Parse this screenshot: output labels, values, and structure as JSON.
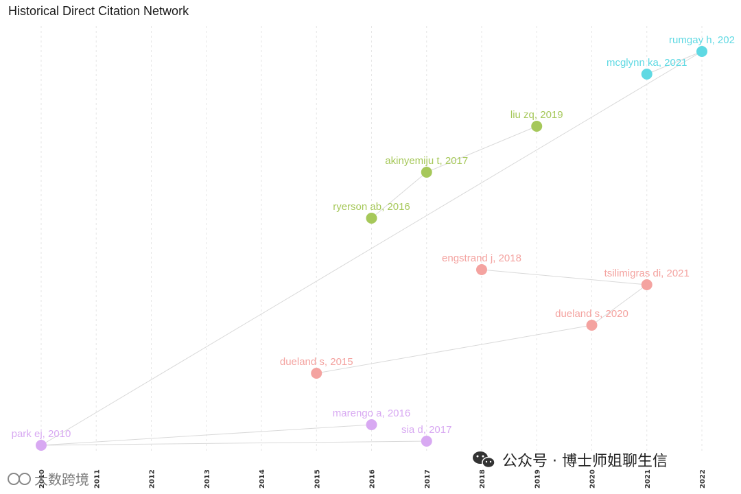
{
  "chart_data": {
    "type": "scatter",
    "title": "Historical Direct Citation Network",
    "x_ticks": [
      2010,
      2011,
      2012,
      2013,
      2014,
      2015,
      2016,
      2017,
      2018,
      2019,
      2020,
      2021,
      2022
    ],
    "grid": "vertical dashed",
    "clusters": [
      {
        "color": "#5fd9e3"
      },
      {
        "color": "#a6c85a"
      },
      {
        "color": "#f4a3a0"
      },
      {
        "color": "#d8a9f2"
      }
    ],
    "nodes": [
      {
        "id": "rumgay",
        "label": "rumgay h, 202",
        "year": 2022,
        "cluster": 0
      },
      {
        "id": "mcglynn",
        "label": "mcglynn ka, 2021",
        "year": 2021,
        "cluster": 0
      },
      {
        "id": "liu",
        "label": "liu zq, 2019",
        "year": 2019,
        "cluster": 1
      },
      {
        "id": "akinyemiju",
        "label": "akinyemiju t, 2017",
        "year": 2017,
        "cluster": 1
      },
      {
        "id": "ryerson",
        "label": "ryerson ab, 2016",
        "year": 2016,
        "cluster": 1
      },
      {
        "id": "engstrand",
        "label": "engstrand j, 2018",
        "year": 2018,
        "cluster": 2
      },
      {
        "id": "tsilimigras",
        "label": "tsilimigras di, 2021",
        "year": 2021,
        "cluster": 2
      },
      {
        "id": "dueland2020",
        "label": "dueland s, 2020",
        "year": 2020,
        "cluster": 2
      },
      {
        "id": "dueland2015",
        "label": "dueland s, 2015",
        "year": 2015,
        "cluster": 2
      },
      {
        "id": "marengo",
        "label": "marengo a, 2016",
        "year": 2016,
        "cluster": 3
      },
      {
        "id": "sia",
        "label": "sia d, 2017",
        "year": 2017,
        "cluster": 3
      },
      {
        "id": "park",
        "label": "park ej, 2010",
        "year": 2010,
        "cluster": 3
      }
    ],
    "edges": [
      [
        "mcglynn",
        "rumgay"
      ],
      [
        "ryerson",
        "akinyemiju"
      ],
      [
        "akinyemiju",
        "liu"
      ],
      [
        "engstrand",
        "tsilimigras"
      ],
      [
        "tsilimigras",
        "dueland2020"
      ],
      [
        "dueland2020",
        "dueland2015"
      ],
      [
        "park",
        "marengo"
      ],
      [
        "park",
        "sia"
      ],
      [
        "park",
        "rumgay"
      ]
    ]
  },
  "watermark": {
    "main_text": "公众号 · 博士师姐聊生信",
    "corner_text": "大数跨境",
    "wechat_icon": "wechat-icon"
  }
}
